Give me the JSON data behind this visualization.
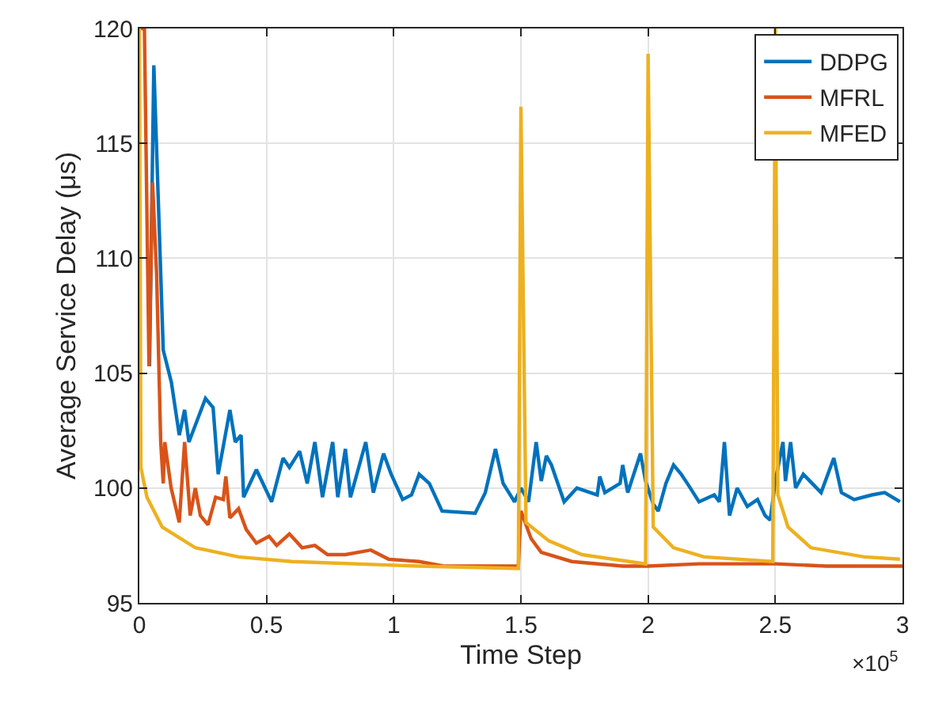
{
  "chart_data": {
    "type": "line",
    "xlabel": "Time Step",
    "ylabel": "Average Service Delay (μs)",
    "xlim": [
      0,
      3
    ],
    "ylim": [
      95,
      120
    ],
    "xticks": [
      0,
      0.5,
      1,
      1.5,
      2,
      2.5,
      3
    ],
    "yticks": [
      95,
      100,
      105,
      110,
      115,
      120
    ],
    "grid": true,
    "legend": "top right",
    "annotations": [
      "×10$^{5}$"
    ],
    "series": [
      {
        "name": "DDPG",
        "color": "#0072bd",
        "x": [
          0.04,
          0.057,
          0.094,
          0.126,
          0.157,
          0.178,
          0.195,
          0.26,
          0.29,
          0.31,
          0.356,
          0.377,
          0.4,
          0.41,
          0.46,
          0.52,
          0.565,
          0.59,
          0.63,
          0.66,
          0.69,
          0.72,
          0.76,
          0.78,
          0.81,
          0.83,
          0.89,
          0.92,
          0.96,
          0.99,
          1.035,
          1.07,
          1.1,
          1.14,
          1.19,
          1.32,
          1.36,
          1.4,
          1.43,
          1.475,
          1.5,
          1.53,
          1.56,
          1.58,
          1.6,
          1.62,
          1.67,
          1.72,
          1.8,
          1.81,
          1.83,
          1.89,
          1.9,
          1.92,
          1.97,
          1.99,
          2.02,
          2.04,
          2.07,
          2.1,
          2.13,
          2.16,
          2.2,
          2.26,
          2.28,
          2.3,
          2.32,
          2.35,
          2.39,
          2.43,
          2.46,
          2.48,
          2.5,
          2.53,
          2.54,
          2.56,
          2.58,
          2.61,
          2.68,
          2.73,
          2.76,
          2.81,
          2.88,
          2.93,
          2.99
        ],
        "values": [
          105.3,
          118.4,
          106,
          104.6,
          102.3,
          103.4,
          102,
          103.9,
          103.5,
          100.6,
          103.4,
          102,
          102.3,
          99.6,
          100.8,
          99.4,
          101.3,
          100.9,
          101.6,
          100.2,
          102,
          99.6,
          102,
          99.6,
          101.7,
          99.6,
          102,
          99.8,
          101.5,
          100.6,
          99.5,
          99.7,
          100.6,
          100.2,
          99.0,
          98.9,
          99.8,
          101.7,
          100.2,
          99.4,
          100,
          99.4,
          102,
          100.3,
          101.4,
          101,
          99.4,
          100,
          99.7,
          100.5,
          99.8,
          100.2,
          101,
          99.8,
          101.5,
          100.3,
          99.3,
          99.0,
          100.2,
          101,
          100.6,
          100.1,
          99.4,
          99.7,
          99.4,
          102,
          98.8,
          100,
          99.2,
          99.5,
          98.8,
          98.6,
          100.3,
          102,
          100.3,
          102,
          100,
          100.6,
          99.8,
          101.3,
          99.8,
          99.5,
          99.7,
          99.8,
          99.4
        ]
      },
      {
        "name": "MFRL",
        "color": "#d95319",
        "x": [
          0.005,
          0.02,
          0.038,
          0.052,
          0.068,
          0.084,
          0.094,
          0.1,
          0.125,
          0.157,
          0.178,
          0.2,
          0.22,
          0.24,
          0.27,
          0.3,
          0.33,
          0.34,
          0.356,
          0.39,
          0.42,
          0.46,
          0.51,
          0.54,
          0.59,
          0.64,
          0.69,
          0.74,
          0.81,
          0.91,
          0.98,
          1.1,
          1.2,
          1.3,
          1.4,
          1.49,
          1.5,
          1.54,
          1.58,
          1.7,
          1.9,
          2.0,
          2.2,
          2.5,
          2.7,
          3.0
        ],
        "values": [
          120,
          120,
          105.3,
          113.3,
          109.3,
          102,
          100.2,
          102,
          100,
          98.5,
          102,
          98.8,
          100,
          98.8,
          98.4,
          99.6,
          99.5,
          100.5,
          98.7,
          99.1,
          98.2,
          97.6,
          97.9,
          97.5,
          98,
          97.4,
          97.5,
          97.1,
          97.1,
          97.3,
          96.9,
          96.8,
          96.6,
          96.6,
          96.6,
          96.6,
          99,
          97.8,
          97.2,
          96.8,
          96.6,
          96.6,
          96.7,
          96.7,
          96.6,
          96.6
        ]
      },
      {
        "name": "MFED",
        "color": "#edb120",
        "x": [
          0,
          0.006,
          0.03,
          0.09,
          0.22,
          0.39,
          0.6,
          1.1,
          1.49,
          1.5,
          1.52,
          1.61,
          1.74,
          1.99,
          2.0,
          2.02,
          2.1,
          2.22,
          2.49,
          2.5,
          2.51,
          2.55,
          2.64,
          2.85,
          2.99
        ],
        "values": [
          120,
          100.9,
          99.6,
          98.3,
          97.4,
          97.0,
          96.8,
          96.6,
          96.5,
          116.6,
          98.5,
          97.7,
          97.1,
          96.7,
          118.9,
          98.3,
          97.4,
          97.0,
          96.8,
          120,
          99.7,
          98.3,
          97.4,
          97.0,
          96.9
        ]
      }
    ]
  }
}
